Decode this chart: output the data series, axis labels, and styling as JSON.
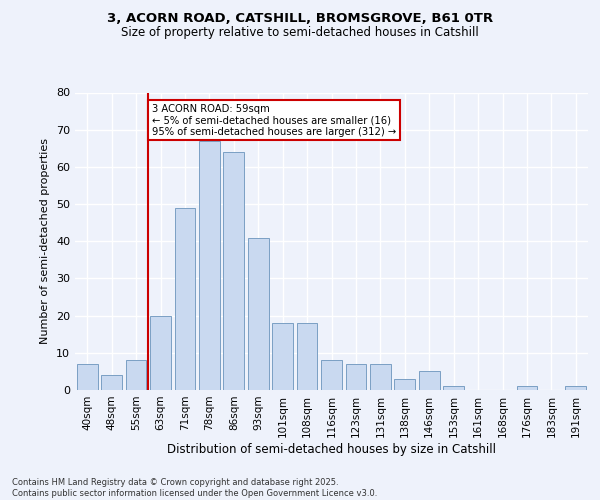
{
  "title1": "3, ACORN ROAD, CATSHILL, BROMSGROVE, B61 0TR",
  "title2": "Size of property relative to semi-detached houses in Catshill",
  "xlabel": "Distribution of semi-detached houses by size in Catshill",
  "ylabel": "Number of semi-detached properties",
  "categories": [
    "40sqm",
    "48sqm",
    "55sqm",
    "63sqm",
    "71sqm",
    "78sqm",
    "86sqm",
    "93sqm",
    "101sqm",
    "108sqm",
    "116sqm",
    "123sqm",
    "131sqm",
    "138sqm",
    "146sqm",
    "153sqm",
    "161sqm",
    "168sqm",
    "176sqm",
    "183sqm",
    "191sqm"
  ],
  "values": [
    7,
    4,
    8,
    20,
    49,
    67,
    64,
    41,
    18,
    18,
    8,
    7,
    7,
    3,
    5,
    1,
    0,
    0,
    1,
    0,
    1
  ],
  "bar_color": "#c9d9f0",
  "bar_edge_color": "#7a9fc4",
  "vline_index": 2.5,
  "annotation_line1": "3 ACORN ROAD: 59sqm",
  "annotation_line2": "← 5% of semi-detached houses are smaller (16)",
  "annotation_line3": "95% of semi-detached houses are larger (312) →",
  "annotation_box_color": "#ffffff",
  "annotation_box_edge": "#cc0000",
  "vline_color": "#cc0000",
  "ylim": [
    0,
    80
  ],
  "yticks": [
    0,
    10,
    20,
    30,
    40,
    50,
    60,
    70,
    80
  ],
  "background_color": "#eef2fb",
  "grid_color": "#ffffff",
  "footer": "Contains HM Land Registry data © Crown copyright and database right 2025.\nContains public sector information licensed under the Open Government Licence v3.0."
}
